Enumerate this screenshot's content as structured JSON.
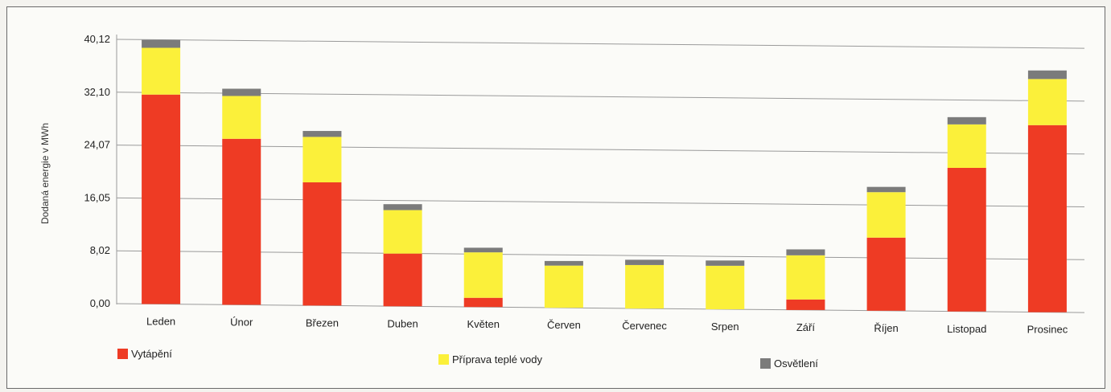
{
  "chart_data": {
    "type": "bar",
    "stacked": true,
    "title": "",
    "ylabel": "Dodaná energie v MWh",
    "xlabel": "",
    "ylim": [
      0,
      40.12
    ],
    "yticks": [
      "0,00",
      "8,02",
      "16,05",
      "24,07",
      "32,10",
      "40,12"
    ],
    "categories": [
      "Leden",
      "Únor",
      "Březen",
      "Duben",
      "Květen",
      "Červen",
      "Červenec",
      "Srpen",
      "Září",
      "Říjen",
      "Listopad",
      "Prosinec"
    ],
    "series": [
      {
        "name": "Vytápění",
        "color": "#ee3b24",
        "values": [
          31.8,
          25.2,
          18.7,
          8.0,
          1.4,
          0.0,
          0.0,
          0.0,
          1.6,
          11.1,
          21.8,
          28.4
        ]
      },
      {
        "name": "Příprava teplé vody",
        "color": "#fbf03a",
        "values": [
          7.1,
          6.5,
          6.9,
          6.6,
          6.9,
          6.4,
          6.6,
          6.6,
          6.7,
          6.9,
          6.6,
          7.0
        ]
      },
      {
        "name": "Osvětlení",
        "color": "#7b7b7b",
        "values": [
          1.2,
          1.1,
          0.9,
          0.9,
          0.7,
          0.7,
          0.8,
          0.8,
          0.9,
          0.8,
          1.1,
          1.3
        ]
      }
    ],
    "grid": true,
    "legend_position": "bottom"
  }
}
